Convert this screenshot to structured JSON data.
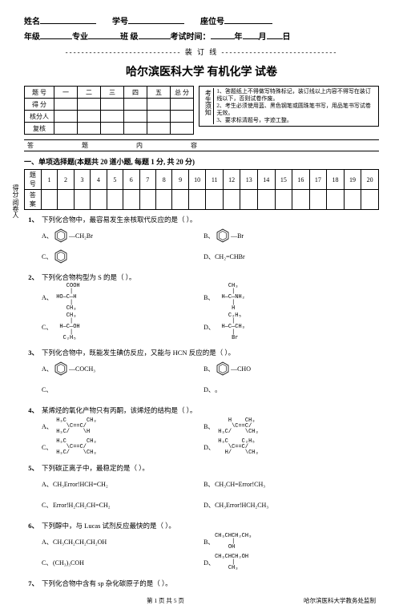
{
  "header": {
    "name_label": "姓名",
    "id_label": "学号",
    "seat_label": "座位号",
    "grade_label": "年级",
    "major_label": "专业",
    "class_label": "班 级",
    "exam_time_label": "考试时间：",
    "year": "年",
    "month": "月",
    "day": "日"
  },
  "binding_text": "----------------------------- 装 订 线 -----------------------------",
  "title": "哈尔滨医科大学  有机化学  试卷",
  "score_table": {
    "row_labels": [
      "题 号",
      "得 分",
      "核分人",
      "复核"
    ],
    "cols": [
      "一",
      "二",
      "三",
      "四",
      "五",
      "总 分"
    ]
  },
  "notes": {
    "label": "考生须知",
    "items": [
      "1、答题纸上不得做写特殊标记，装订线以上内容不得写在装订线以下，否则试卷作废。",
      "2、考生必须使用蓝、黑色钢笔或圆珠笔书写，用品笔书写试卷无效。",
      "3、要求标清题号，字迹工整。"
    ]
  },
  "side_label": "得分/阅卷人",
  "section_bar_cells": [
    "答",
    "题",
    "内",
    "容"
  ],
  "section1": {
    "title": "一、单项选择题(本题共 20 道小题, 每题 1 分, 共 20 分)",
    "answer_header": "题号",
    "answer_row": "答案",
    "nums": [
      "1",
      "2",
      "3",
      "4",
      "5",
      "6",
      "7",
      "8",
      "9",
      "10",
      "11",
      "12",
      "13",
      "14",
      "15",
      "16",
      "17",
      "18",
      "19",
      "20"
    ]
  },
  "questions": [
    {
      "n": "1、",
      "stem": "下列化合物中，最容易发生亲核取代反应的是（    ）。",
      "opts": [
        {
          "l": "A、",
          "svg": "benzene",
          "txt": "—CH₂Br"
        },
        {
          "l": "B、",
          "svg": "benzene",
          "txt": "—Br"
        },
        {
          "l": "C、",
          "svg": "benzene",
          "txt": ""
        },
        {
          "l": "D、",
          "txt": "CH₂=CHBr"
        }
      ]
    },
    {
      "n": "2、",
      "stem": "下列化合物构型为 S 的是（    ）。",
      "opts": [
        {
          "l": "A、",
          "pre": "    COOH\n     |\n HO—C—H\n     |\n    CH₃"
        },
        {
          "l": "B、",
          "pre": "    CH₃\n     |\n  H—C—NH₂\n     |\n     H"
        },
        {
          "l": "C、",
          "pre": "    CH₃\n     |\n  H—C—OH\n     |\n   C₂H₅"
        },
        {
          "l": "D、",
          "pre": "    C₂H₅\n     |\n  H—C—CH₃\n     |\n     Br"
        }
      ]
    },
    {
      "n": "3、",
      "stem": "下列化合物中，既能发生碘仿反应，又能与 HCN 反应的是（    ）。",
      "opts": [
        {
          "l": "A、",
          "svg": "benzene",
          "txt": "—COCH₃"
        },
        {
          "l": "B、",
          "svg": "benzene",
          "txt": "—CHO"
        },
        {
          "l": "C、",
          "txt": ""
        },
        {
          "l": "D、",
          "txt": "。"
        }
      ]
    },
    {
      "n": "4、",
      "stem": "某烯烃的氧化产物只有丙酮，该烯烃的结构是（    ）。",
      "opts": [
        {
          "l": "A、",
          "pre": " H₃C      CH₃\n    \\C==C/\n H₃C/    \\H"
        },
        {
          "l": "B、",
          "pre": "    H    CH₃\n     \\C==C/\n H₃C/    \\CH₃"
        },
        {
          "l": "C、",
          "pre": " H₃C      CH₃\n    \\C==C/\n H₃C/    \\CH₃"
        },
        {
          "l": "D、",
          "pre": " H₃C    C₂H₅\n    \\C==C/\n   H/    \\CH₃"
        }
      ]
    },
    {
      "n": "5、",
      "stem": "下列碳正离子中，最稳定的是（    ）。",
      "opts": [
        {
          "l": "A、",
          "txt": "CH₃Error!HCH=CH₂"
        },
        {
          "l": "B、",
          "txt": "CH₃CH=Error!CH₃"
        },
        {
          "l": "C、",
          "txt": "Error!H₂CH₂CH=CH₂"
        },
        {
          "l": "D、",
          "txt": "CH₃Error!HCH₂CH₃"
        }
      ]
    },
    {
      "n": "6、",
      "stem": "下列醇中，与 Lucas 试剂反应最快的是（    ）。",
      "opts": [
        {
          "l": "A、",
          "txt": "CH₃CH₂CH₂CH₂OH"
        },
        {
          "l": "B、",
          "pre": "CH₃CHCH₂CH₃\n     |\n    OH"
        },
        {
          "l": "C、",
          "txt": "(CH₃)₃COH"
        },
        {
          "l": "D、",
          "pre": "CH₃CHCH₂OH\n     |\n    CH₃"
        }
      ]
    },
    {
      "n": "7、",
      "stem": "下列化合物中含有 sp 杂化碳原子的是（    ）。",
      "opts": []
    }
  ],
  "footer": {
    "page": "第 1 页 共 5 页",
    "org": "哈尔滨医科大学教务处监制"
  }
}
